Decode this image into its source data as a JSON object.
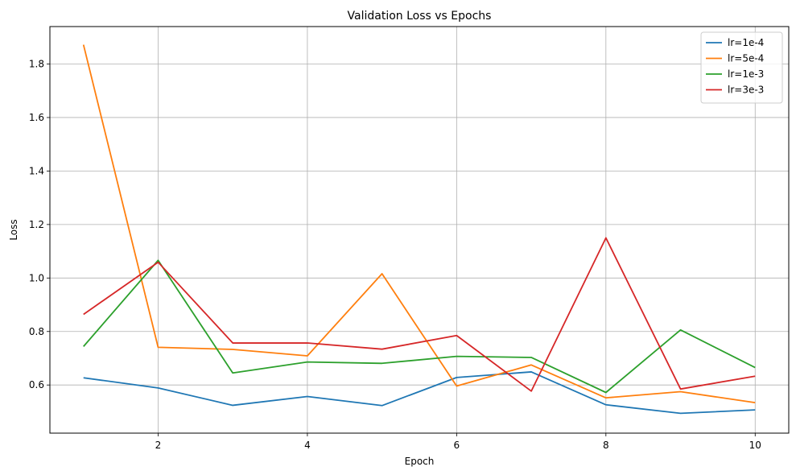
{
  "chart_data": {
    "type": "line",
    "title": "Validation Loss vs Epochs",
    "xlabel": "Epoch",
    "ylabel": "Loss",
    "x": [
      1,
      2,
      3,
      4,
      5,
      6,
      7,
      8,
      9,
      10
    ],
    "xticks": [
      2,
      4,
      6,
      8,
      10
    ],
    "yticks": [
      0.6,
      0.8,
      1.0,
      1.2,
      1.4,
      1.6,
      1.8
    ],
    "xlim": [
      0.55,
      10.45
    ],
    "ylim": [
      0.42,
      1.94
    ],
    "grid": true,
    "legend_position": "top-right",
    "series": [
      {
        "name": "lr=1e-4",
        "color": "#1f77b4",
        "values": [
          0.627,
          0.589,
          0.524,
          0.557,
          0.523,
          0.628,
          0.649,
          0.526,
          0.494,
          0.507
        ]
      },
      {
        "name": "lr=5e-4",
        "color": "#ff7f0e",
        "values": [
          1.872,
          0.741,
          0.733,
          0.709,
          1.016,
          0.596,
          0.675,
          0.552,
          0.575,
          0.534
        ]
      },
      {
        "name": "lr=1e-3",
        "color": "#2ca02c",
        "values": [
          0.744,
          1.066,
          0.645,
          0.686,
          0.681,
          0.707,
          0.703,
          0.572,
          0.806,
          0.665
        ]
      },
      {
        "name": "lr=3e-3",
        "color": "#d62728",
        "values": [
          0.864,
          1.059,
          0.757,
          0.757,
          0.734,
          0.785,
          0.577,
          1.15,
          0.585,
          0.633
        ]
      }
    ]
  }
}
